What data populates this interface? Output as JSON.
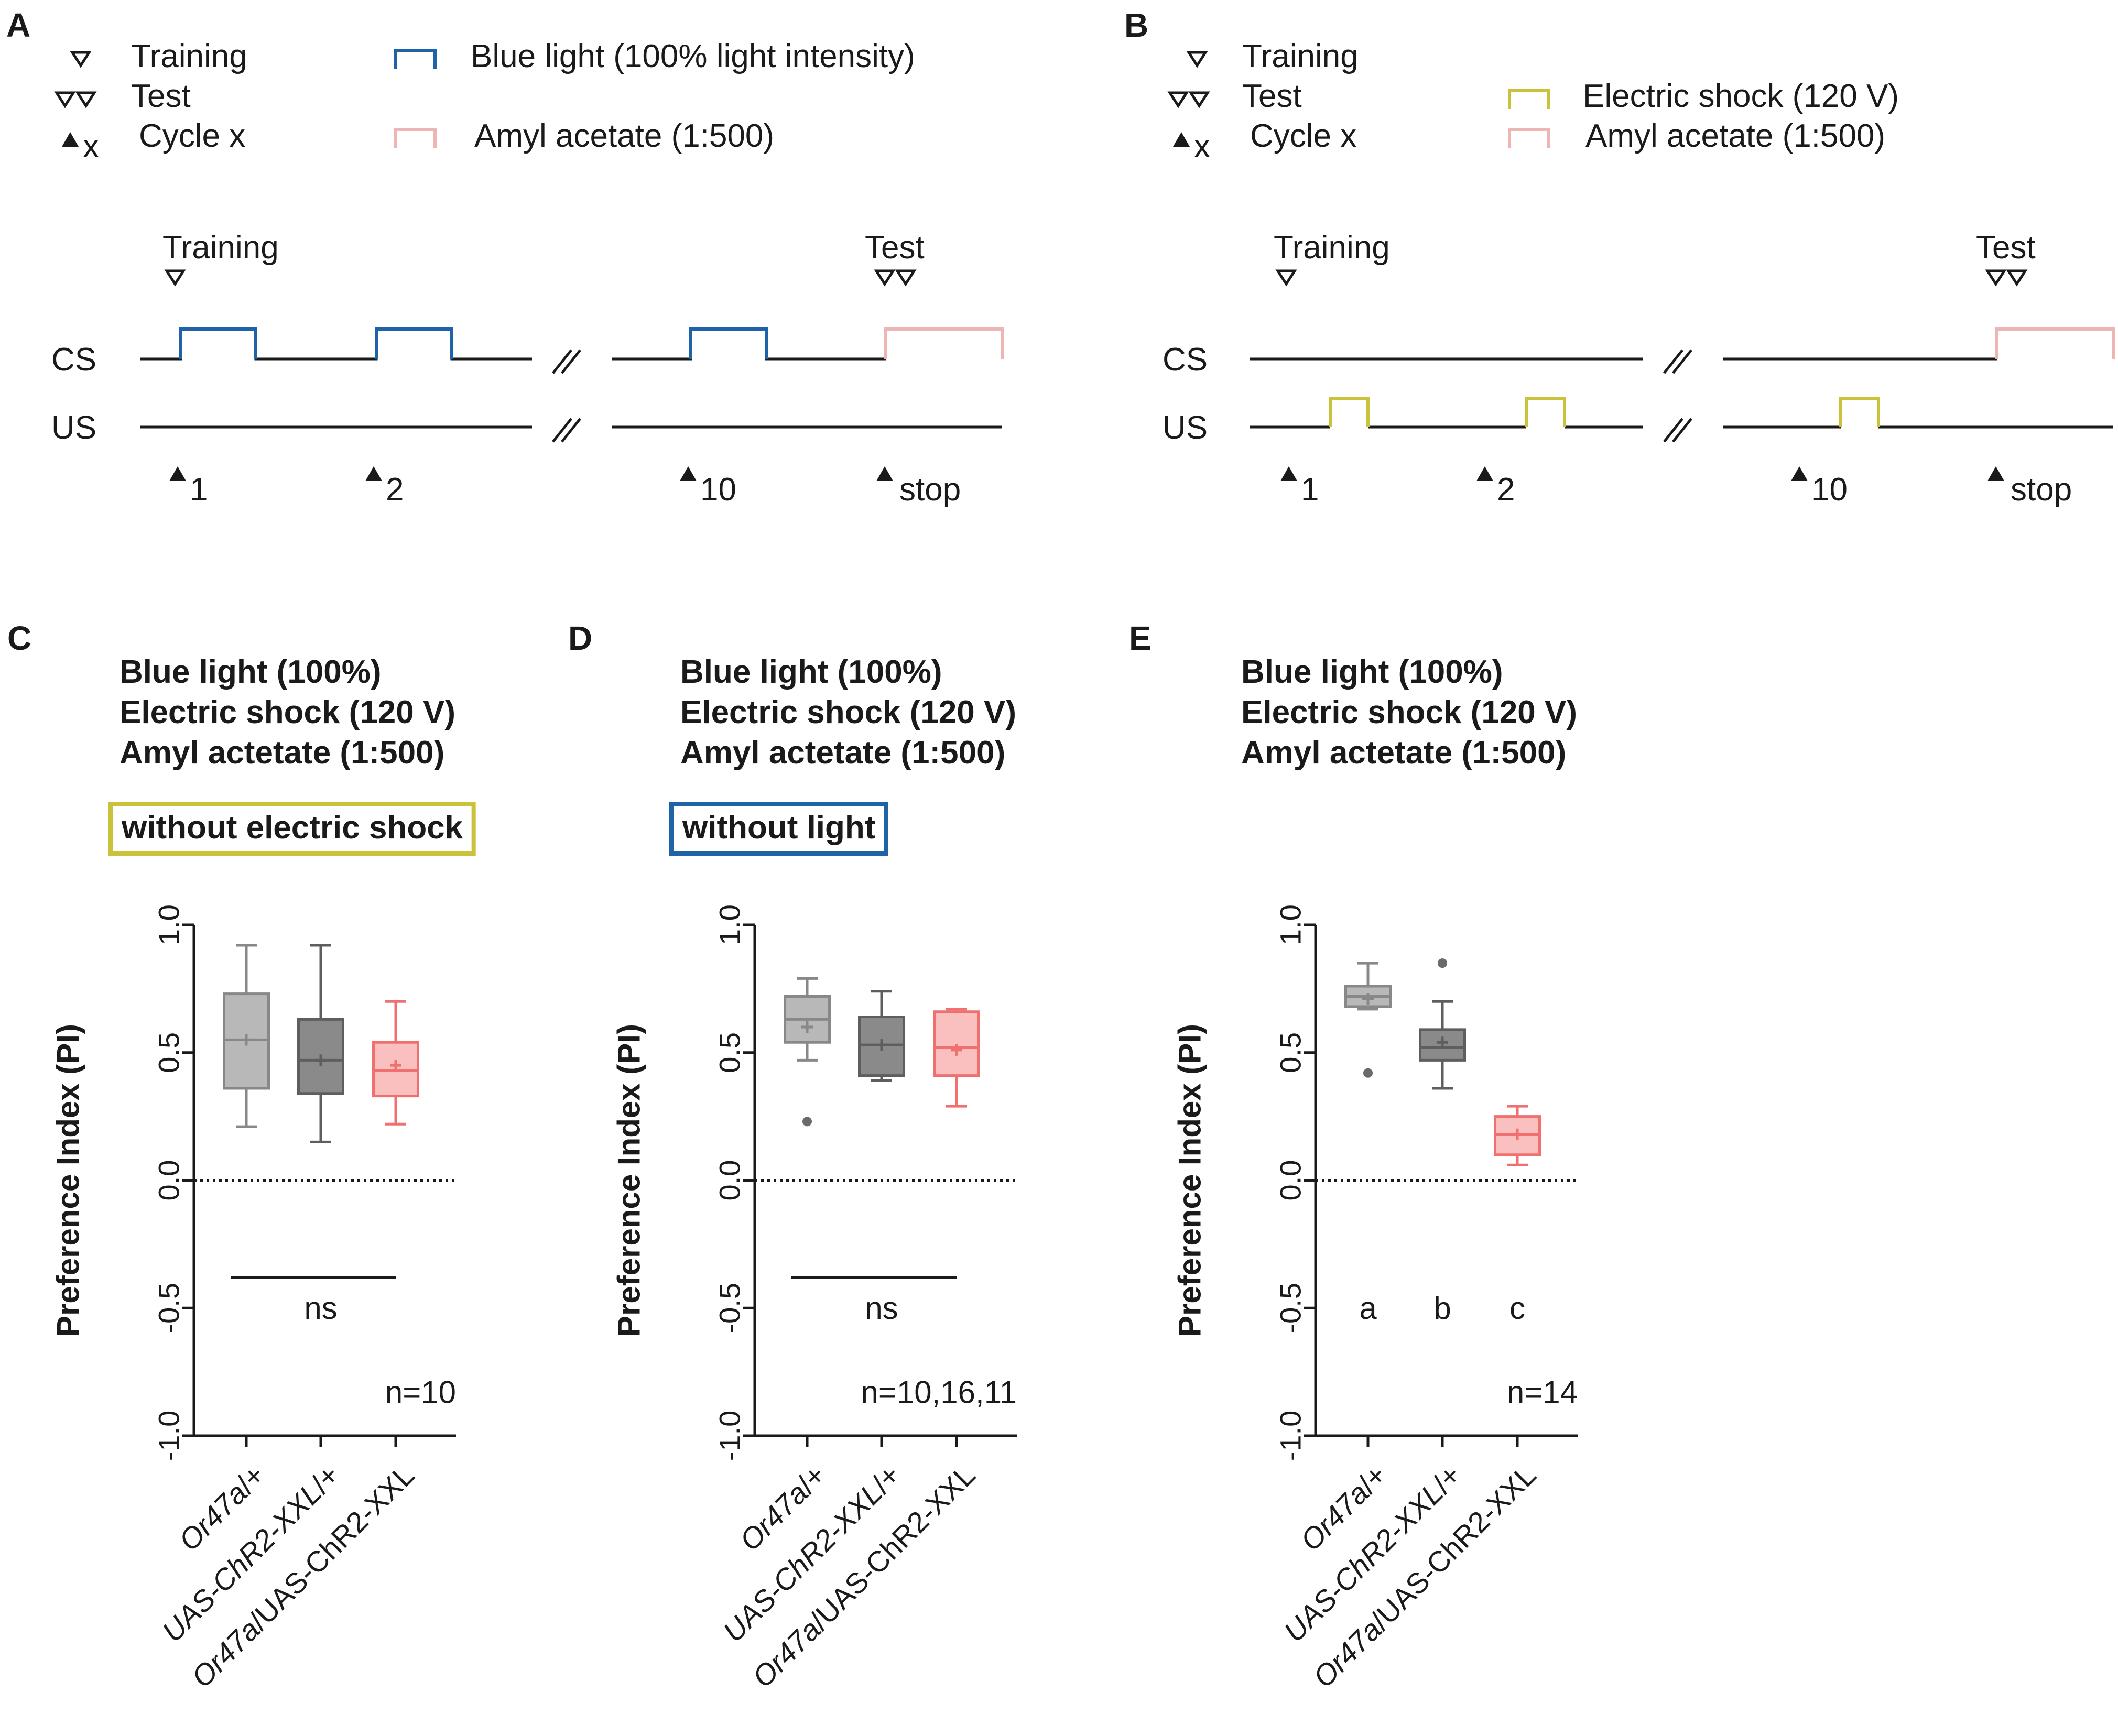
{
  "colors": {
    "blue": "#1f62a8",
    "yellow": "#c9c23a",
    "pink": "#eeb5b5",
    "gray_light": "#b8b8b8",
    "gray_dark": "#8a8a8a",
    "red": "#f58a8a",
    "axis": "#1a1a1a"
  },
  "panel_a": {
    "letter": "A",
    "legend": {
      "training": "Training",
      "test": "Test",
      "cycle": "Cycle x",
      "cycle_sub": "x",
      "stim1": "Blue light (100% light intensity)",
      "stim2": "Amyl acetate (1:500)"
    },
    "timeline": {
      "training": "Training",
      "test": "Test",
      "cs": "CS",
      "us": "US",
      "cycles": [
        "1",
        "2",
        "10",
        "stop"
      ]
    }
  },
  "panel_b": {
    "letter": "B",
    "legend": {
      "training": "Training",
      "test": "Test",
      "cycle": "Cycle x",
      "cycle_sub": "x",
      "stim1": "Electric shock (120 V)",
      "stim2": "Amyl acetate (1:500)"
    },
    "timeline": {
      "training": "Training",
      "test": "Test",
      "cs": "CS",
      "us": "US",
      "cycles": [
        "1",
        "2",
        "10",
        "stop"
      ]
    }
  },
  "chart_data": [
    {
      "type": "box",
      "panel": "C",
      "conditions": [
        "Blue light (100%)",
        "Electric shock (120 V)",
        "Amyl actetate (1:500)"
      ],
      "box_label": "without electric shock",
      "ylabel": "Preference Index (PI)",
      "ylim": [
        -1.0,
        1.0
      ],
      "yticks": [
        "1.0",
        "0.5",
        "0.0",
        "-0.5",
        "-1.0"
      ],
      "categories": [
        {
          "prefix": "Or47a",
          "suffix": "/+"
        },
        {
          "prefix": "UAS-ChR2-XXL",
          "suffix": "/+"
        },
        {
          "prefix": "Or47a",
          "suffix": "/UAS-ChR2-XXL"
        }
      ],
      "boxes": [
        {
          "min": 0.21,
          "q1": 0.36,
          "median": 0.55,
          "q3": 0.73,
          "max": 0.92,
          "mean": 0.55,
          "outliers": []
        },
        {
          "min": 0.15,
          "q1": 0.34,
          "median": 0.47,
          "q3": 0.63,
          "max": 0.92,
          "mean": 0.47,
          "outliers": []
        },
        {
          "min": 0.22,
          "q1": 0.33,
          "median": 0.43,
          "q3": 0.54,
          "max": 0.7,
          "mean": 0.45,
          "outliers": []
        }
      ],
      "annotation": "ns",
      "n_label": "n=10"
    },
    {
      "type": "box",
      "panel": "D",
      "conditions": [
        "Blue light (100%)",
        "Electric shock (120 V)",
        "Amyl actetate (1:500)"
      ],
      "box_label": "without light",
      "ylabel": "Preference Index (PI)",
      "ylim": [
        -1.0,
        1.0
      ],
      "yticks": [
        "1.0",
        "0.5",
        "0.0",
        "-0.5",
        "-1.0"
      ],
      "categories": [
        {
          "prefix": "Or47a",
          "suffix": "/+"
        },
        {
          "prefix": "UAS-ChR2-XXL",
          "suffix": "/+"
        },
        {
          "prefix": "Or47a",
          "suffix": "/UAS-ChR2-XXL"
        }
      ],
      "boxes": [
        {
          "min": 0.47,
          "q1": 0.54,
          "median": 0.63,
          "q3": 0.72,
          "max": 0.79,
          "mean": 0.6,
          "outliers": [
            0.23
          ]
        },
        {
          "min": 0.39,
          "q1": 0.41,
          "median": 0.53,
          "q3": 0.64,
          "max": 0.74,
          "mean": 0.53,
          "outliers": []
        },
        {
          "min": 0.29,
          "q1": 0.41,
          "median": 0.52,
          "q3": 0.66,
          "max": 0.67,
          "mean": 0.51,
          "outliers": []
        }
      ],
      "annotation": "ns",
      "n_label": "n=10,16,11"
    },
    {
      "type": "box",
      "panel": "E",
      "conditions": [
        "Blue light (100%)",
        "Electric shock (120 V)",
        "Amyl actetate (1:500)"
      ],
      "box_label": "",
      "ylabel": "Preference Index (PI)",
      "ylim": [
        -1.0,
        1.0
      ],
      "yticks": [
        "1.0",
        "0.5",
        "0.0",
        "-0.5",
        "-1.0"
      ],
      "categories": [
        {
          "prefix": "Or47a",
          "suffix": "/+"
        },
        {
          "prefix": "UAS-ChR2-XXL",
          "suffix": "/+"
        },
        {
          "prefix": "Or47a",
          "suffix": "/UAS-ChR2-XXL"
        }
      ],
      "boxes": [
        {
          "min": 0.67,
          "q1": 0.68,
          "median": 0.72,
          "q3": 0.76,
          "max": 0.85,
          "mean": 0.71,
          "outliers": [
            0.42
          ]
        },
        {
          "min": 0.36,
          "q1": 0.47,
          "median": 0.52,
          "q3": 0.59,
          "max": 0.7,
          "mean": 0.54,
          "outliers": [
            0.85
          ]
        },
        {
          "min": 0.06,
          "q1": 0.1,
          "median": 0.18,
          "q3": 0.25,
          "max": 0.29,
          "mean": 0.18,
          "outliers": []
        }
      ],
      "group_letters": [
        "a",
        "b",
        "c"
      ],
      "n_label": "n=14"
    }
  ]
}
